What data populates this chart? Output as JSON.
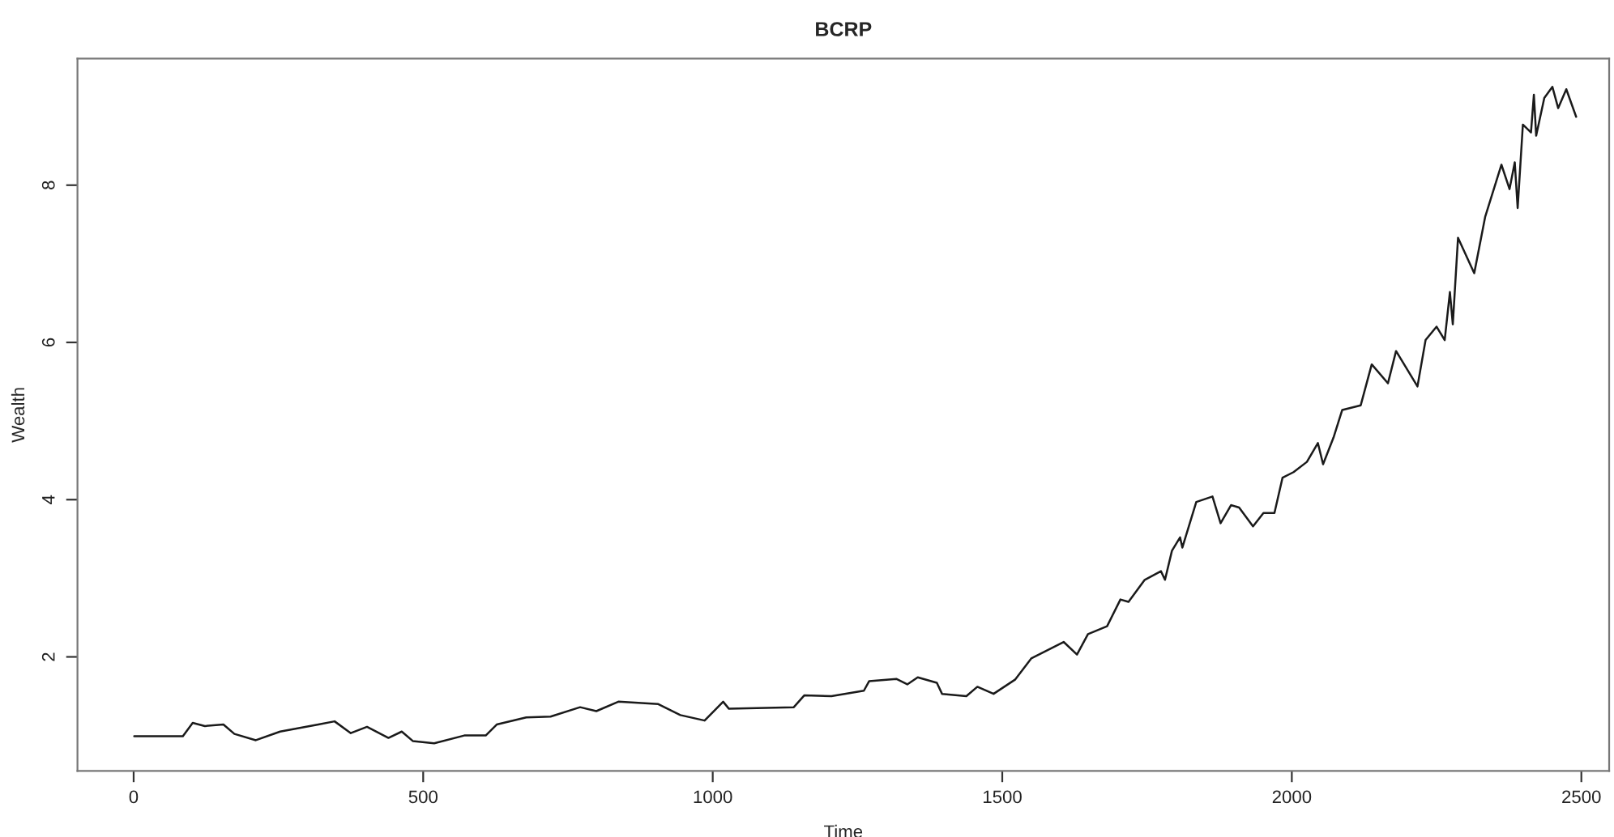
{
  "chart_data": {
    "type": "line",
    "title": "BCRP",
    "xlabel": "Time",
    "ylabel": "Wealth",
    "xlim": [
      -97,
      2548
    ],
    "xticks": [
      0,
      500,
      1000,
      1500,
      2000,
      2500
    ],
    "ylim": [
      0.55,
      9.61
    ],
    "yticks": [
      2,
      4,
      6,
      8
    ],
    "grid": false,
    "legend": false,
    "series": [
      {
        "color": "#1a1a1a",
        "x": [
          1,
          85,
          102,
          123,
          155,
          174,
          211,
          253,
          319,
          347,
          375,
          403,
          440,
          463,
          482,
          519,
          571,
          608,
          627,
          678,
          720,
          771,
          799,
          837,
          906,
          944,
          986,
          1018,
          1028,
          1140,
          1158,
          1205,
          1261,
          1270,
          1317,
          1336,
          1354,
          1387,
          1396,
          1438,
          1457,
          1485,
          1522,
          1550,
          1606,
          1629,
          1648,
          1681,
          1704,
          1718,
          1746,
          1774,
          1781,
          1793,
          1807,
          1811,
          1835,
          1863,
          1877,
          1895,
          1909,
          1933,
          1951,
          1970,
          1984,
          2003,
          2026,
          2045,
          2054,
          2072,
          2087,
          2119,
          2138,
          2166,
          2180,
          2217,
          2231,
          2250,
          2264,
          2273,
          2278,
          2287,
          2315,
          2334,
          2362,
          2376,
          2385,
          2390,
          2399,
          2413,
          2418,
          2422,
          2436,
          2450,
          2460,
          2474,
          2491
        ],
        "values": [
          0.99,
          0.99,
          1.16,
          1.12,
          1.14,
          1.02,
          0.94,
          1.05,
          1.14,
          1.18,
          1.03,
          1.11,
          0.97,
          1.05,
          0.93,
          0.9,
          1.0,
          1.0,
          1.14,
          1.23,
          1.24,
          1.36,
          1.31,
          1.43,
          1.4,
          1.26,
          1.19,
          1.43,
          1.34,
          1.36,
          1.51,
          1.5,
          1.57,
          1.69,
          1.72,
          1.65,
          1.74,
          1.67,
          1.53,
          1.5,
          1.62,
          1.53,
          1.71,
          1.98,
          2.19,
          2.03,
          2.29,
          2.39,
          2.73,
          2.7,
          2.98,
          3.09,
          2.98,
          3.35,
          3.52,
          3.39,
          3.97,
          4.04,
          3.7,
          3.93,
          3.9,
          3.66,
          3.83,
          3.83,
          4.28,
          4.35,
          4.48,
          4.72,
          4.45,
          4.79,
          5.14,
          5.2,
          5.72,
          5.48,
          5.89,
          5.44,
          6.03,
          6.2,
          6.03,
          6.64,
          6.23,
          7.33,
          6.88,
          7.6,
          8.26,
          7.95,
          8.29,
          7.71,
          8.77,
          8.67,
          9.15,
          8.63,
          9.11,
          9.25,
          8.98,
          9.22,
          8.87
        ]
      }
    ]
  }
}
